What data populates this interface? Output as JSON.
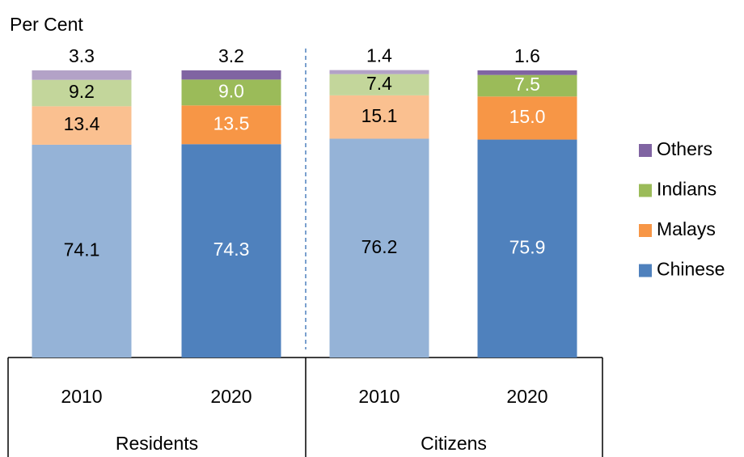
{
  "chart_data": {
    "type": "stacked_bar",
    "y_label": "Per Cent",
    "categories": [
      "2010",
      "2020",
      "2010",
      "2020"
    ],
    "groups": [
      "Residents",
      "Citizens"
    ],
    "ylim": [
      0,
      100
    ],
    "series": [
      {
        "name": "Chinese",
        "color": "#4f81bd",
        "colors": [
          "#95b3d7",
          "#4f81bd",
          "#95b3d7",
          "#4f81bd"
        ],
        "values": [
          74.1,
          74.3,
          76.2,
          75.9
        ]
      },
      {
        "name": "Malays",
        "color": "#f79646",
        "colors": [
          "#fac090",
          "#f79646",
          "#fac090",
          "#f79646"
        ],
        "values": [
          13.4,
          13.5,
          15.1,
          15.0
        ],
        "value_labels": [
          "13.4",
          "13.5",
          "15.1",
          "15.0"
        ]
      },
      {
        "name": "Indians",
        "color": "#9bbb59",
        "colors": [
          "#c3d69b",
          "#9bbb59",
          "#c3d69b",
          "#9bbb59"
        ],
        "values": [
          9.2,
          9.0,
          7.4,
          7.5
        ],
        "value_labels": [
          "9.2",
          "9.0",
          "7.4",
          "7.5"
        ]
      },
      {
        "name": "Others",
        "color": "#8064a2",
        "colors": [
          "#b3a2c7",
          "#8064a2",
          "#b3a2c7",
          "#8064a2"
        ],
        "values": [
          3.3,
          3.2,
          1.4,
          1.6
        ]
      }
    ],
    "legend": "right"
  }
}
